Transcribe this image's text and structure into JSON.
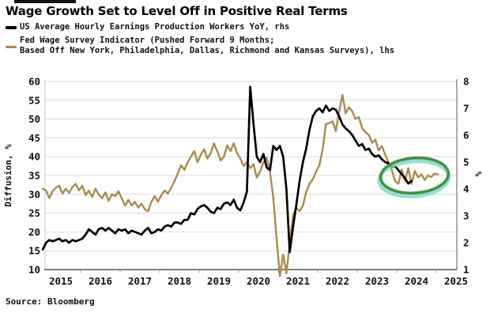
{
  "header": {
    "title": "Wage Growth Set to Level Off in Positive Real Terms",
    "source": "Source: Bloomberg"
  },
  "legend": {
    "us_ahe_label": "US Average Hourly Earnings Production Workers YoY, rhs",
    "fed_line1": "Fed Wage Survey Indicator (Pushed Forward 9 Months;",
    "fed_line2": "Based Off New York, Philadelphia, Dallas, Richmond and Kansas Surveys), lhs",
    "black_color": "#000000",
    "tan_color": "#ab8a4d"
  },
  "chart_data": {
    "type": "line",
    "title": "Wage Growth Set to Level Off in Positive Real Terms",
    "grid": true,
    "left_axis": {
      "label": "Diffusion, %",
      "min": 10,
      "max": 60,
      "ticks": [
        10,
        15,
        20,
        25,
        30,
        35,
        40,
        45,
        50,
        55,
        60
      ]
    },
    "right_axis": {
      "label": "%",
      "min": 1,
      "max": 8,
      "ticks": [
        1,
        2,
        3,
        4,
        5,
        6,
        7,
        8
      ]
    },
    "x_axis": {
      "ticks": [
        2015,
        2016,
        2017,
        2018,
        2019,
        2020,
        2021,
        2022,
        2023,
        2024,
        2025
      ]
    },
    "series": [
      {
        "name": "Fed Wage Survey Indicator (Pushed Forward 9 Months; Based Off New York, Philadelphia, Dallas, Richmond and Kansas Surveys)",
        "axis": "left",
        "color": "#ab8a4d",
        "width": 2.4,
        "start": 2015.042,
        "step": 0.08333,
        "values": [
          31.5,
          31.0,
          29.0,
          30.8,
          31.8,
          32.3,
          30.2,
          31.5,
          30.4,
          31.9,
          32.8,
          31.0,
          32.3,
          29.8,
          31.0,
          29.3,
          31.5,
          30.0,
          28.9,
          30.5,
          28.3,
          30.0,
          29.5,
          30.8,
          28.9,
          27.0,
          28.5,
          27.0,
          28.0,
          26.5,
          27.5,
          26.0,
          25.5,
          28.0,
          29.5,
          28.0,
          29.8,
          31.0,
          30.2,
          31.7,
          33.5,
          35.5,
          37.7,
          36.5,
          38.5,
          40.0,
          41.5,
          38.5,
          40.5,
          42.0,
          39.5,
          41.0,
          43.5,
          41.5,
          39.0,
          40.0,
          43.0,
          41.5,
          43.6,
          41.0,
          39.5,
          37.5,
          38.5,
          37.0,
          38.0,
          34.5,
          36.0,
          38.5,
          39.8,
          36.0,
          29.1,
          18.5,
          8.2,
          14.0,
          9.0,
          17.0,
          24.3,
          26.4,
          25.5,
          27.0,
          30.6,
          32.8,
          34.0,
          36.0,
          37.7,
          42.0,
          48.7,
          48.9,
          49.4,
          46.8,
          52.0,
          56.4,
          51.5,
          53.2,
          52.0,
          50.0,
          50.5,
          47.5,
          46.5,
          45.8,
          43.7,
          44.5,
          41.7,
          42.8,
          40.5,
          38.5,
          36.5,
          33.5,
          32.8,
          36.6,
          33.5,
          37.0,
          32.8,
          36.2,
          34.5,
          35.3,
          33.8,
          35.0,
          34.6,
          35.5,
          35.3
        ]
      },
      {
        "name": "US Average Hourly Earnings Production Workers YoY",
        "axis": "right",
        "color": "#000000",
        "width": 2.7,
        "start": 2015.042,
        "step": 0.08333,
        "values": [
          1.75,
          2.0,
          2.1,
          2.05,
          2.1,
          2.15,
          2.05,
          2.1,
          2.0,
          2.1,
          2.05,
          2.1,
          2.15,
          2.3,
          2.5,
          2.4,
          2.3,
          2.5,
          2.55,
          2.45,
          2.55,
          2.45,
          2.35,
          2.5,
          2.45,
          2.5,
          2.35,
          2.45,
          2.4,
          2.35,
          2.3,
          2.45,
          2.55,
          2.35,
          2.4,
          2.5,
          2.45,
          2.6,
          2.65,
          2.6,
          2.75,
          2.75,
          2.7,
          2.85,
          2.85,
          3.1,
          3.05,
          3.25,
          3.35,
          3.4,
          3.3,
          3.15,
          3.1,
          3.3,
          3.25,
          3.45,
          3.5,
          3.4,
          3.6,
          3.3,
          3.2,
          3.5,
          3.9,
          7.8,
          6.4,
          5.2,
          5.0,
          5.3,
          4.8,
          4.7,
          5.6,
          5.45,
          5.6,
          5.2,
          4.0,
          1.65,
          2.6,
          3.4,
          4.3,
          5.0,
          5.5,
          6.2,
          6.7,
          6.9,
          7.0,
          6.85,
          7.1,
          6.9,
          7.0,
          6.95,
          6.7,
          6.4,
          6.25,
          6.15,
          6.0,
          5.8,
          5.6,
          5.67,
          5.45,
          5.5,
          5.3,
          5.2,
          5.25,
          5.1,
          5.0,
          4.95,
          4.8,
          4.85,
          4.7,
          4.55,
          4.4,
          4.2,
          4.3
        ]
      }
    ],
    "annotation": {
      "type": "ellipse",
      "cx_year": 2024.45,
      "cy_rhs": 4.5,
      "rx_years": 0.86,
      "ry_rhs": 0.65,
      "rotation_deg": -4,
      "color": "#3c9440",
      "glow_color": "#7fd6c6",
      "meaning": "highlights late-2023 to 2024 convergence of both series (~4.5% rhs / ~35 lhs)"
    }
  }
}
